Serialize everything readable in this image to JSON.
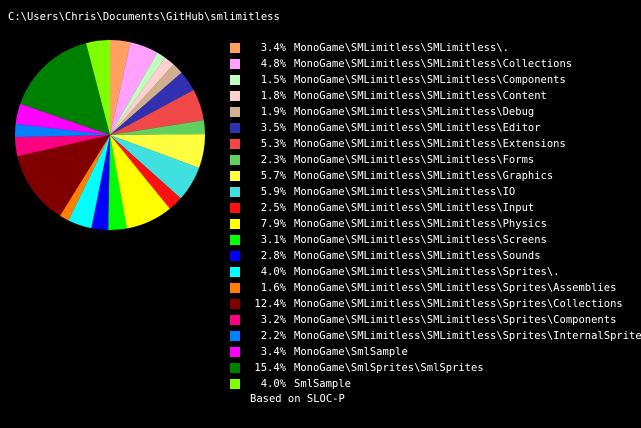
{
  "title": "C:\\Users\\Chris\\Documents\\GitHub\\smlimitless",
  "note": "Based on SLOC-P",
  "chart_data": {
    "type": "pie",
    "title": "C:\\Users\\Chris\\Documents\\GitHub\\smlimitless",
    "legend_position": "right",
    "slices": [
      {
        "label": "MonoGame\\SMLimitless\\SMLimitless\\.",
        "value": 3.4,
        "display": "3.4%",
        "color": "#ffa060"
      },
      {
        "label": "MonoGame\\SMLimitless\\SMLimitless\\Collections",
        "value": 4.8,
        "display": "4.8%",
        "color": "#ffa0ff"
      },
      {
        "label": "MonoGame\\SMLimitless\\SMLimitless\\Components",
        "value": 1.5,
        "display": "1.5%",
        "color": "#c0ffc0"
      },
      {
        "label": "MonoGame\\SMLimitless\\SMLimitless\\Content",
        "value": 1.8,
        "display": "1.8%",
        "color": "#ffd0d0"
      },
      {
        "label": "MonoGame\\SMLimitless\\SMLimitless\\Debug",
        "value": 1.9,
        "display": "1.9%",
        "color": "#d0b090"
      },
      {
        "label": "MonoGame\\SMLimitless\\SMLimitless\\Editor",
        "value": 3.5,
        "display": "3.5%",
        "color": "#3030b0"
      },
      {
        "label": "MonoGame\\SMLimitless\\SMLimitless\\Extensions",
        "value": 5.3,
        "display": "5.3%",
        "color": "#f04848"
      },
      {
        "label": "MonoGame\\SMLimitless\\SMLimitless\\Forms",
        "value": 2.3,
        "display": "2.3%",
        "color": "#60d060"
      },
      {
        "label": "MonoGame\\SMLimitless\\SMLimitless\\Graphics",
        "value": 5.7,
        "display": "5.7%",
        "color": "#ffff40"
      },
      {
        "label": "MonoGame\\SMLimitless\\SMLimitless\\IO",
        "value": 5.9,
        "display": "5.9%",
        "color": "#40e0e0"
      },
      {
        "label": "MonoGame\\SMLimitless\\SMLimitless\\Input",
        "value": 2.5,
        "display": "2.5%",
        "color": "#ff1010"
      },
      {
        "label": "MonoGame\\SMLimitless\\SMLimitless\\Physics",
        "value": 7.9,
        "display": "7.9%",
        "color": "#ffff00"
      },
      {
        "label": "MonoGame\\SMLimitless\\SMLimitless\\Screens",
        "value": 3.1,
        "display": "3.1%",
        "color": "#00ff00"
      },
      {
        "label": "MonoGame\\SMLimitless\\SMLimitless\\Sounds",
        "value": 2.8,
        "display": "2.8%",
        "color": "#0000ff"
      },
      {
        "label": "MonoGame\\SMLimitless\\SMLimitless\\Sprites\\.",
        "value": 4.0,
        "display": "4.0%",
        "color": "#00ffff"
      },
      {
        "label": "MonoGame\\SMLimitless\\SMLimitless\\Sprites\\Assemblies",
        "value": 1.6,
        "display": "1.6%",
        "color": "#ff8000"
      },
      {
        "label": "MonoGame\\SMLimitless\\SMLimitless\\Sprites\\Collections",
        "value": 12.4,
        "display": "12.4%",
        "color": "#800000"
      },
      {
        "label": "MonoGame\\SMLimitless\\SMLimitless\\Sprites\\Components",
        "value": 3.2,
        "display": "3.2%",
        "color": "#ff0080"
      },
      {
        "label": "MonoGame\\SMLimitless\\SMLimitless\\Sprites\\InternalSprites",
        "value": 2.2,
        "display": "2.2%",
        "color": "#0080ff"
      },
      {
        "label": "MonoGame\\SmlSample",
        "value": 3.4,
        "display": "3.4%",
        "color": "#ff00ff"
      },
      {
        "label": "MonoGame\\SmlSprites\\SmlSprites",
        "value": 15.4,
        "display": "15.4%",
        "color": "#008000"
      },
      {
        "label": "SmlSample",
        "value": 4.0,
        "display": "4.0%",
        "color": "#80ff00"
      }
    ]
  }
}
